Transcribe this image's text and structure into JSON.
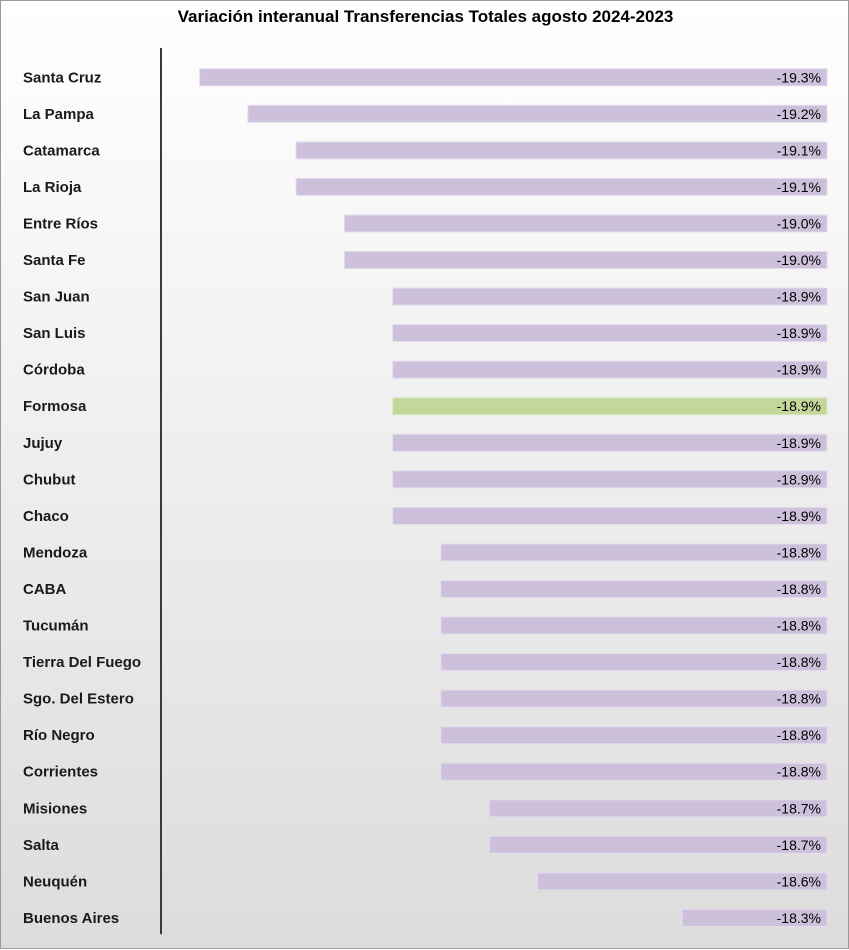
{
  "chart_data": {
    "type": "bar",
    "orientation": "horizontal",
    "title": "Variación interanual Transferencias Totales agosto 2024-2023",
    "xlabel": "",
    "ylabel": "",
    "grid": false,
    "legend": "none",
    "xlim": [
      -19.38,
      -18.0
    ],
    "categories": [
      "Santa Cruz",
      "La Pampa",
      "Catamarca",
      "La Rioja",
      "Entre Ríos",
      "Santa Fe",
      "San Juan",
      "San Luis",
      "Córdoba",
      "Formosa",
      "Jujuy",
      "Chubut",
      "Chaco",
      "Mendoza",
      "CABA",
      "Tucumán",
      "Tierra Del Fuego",
      "Sgo. Del Estero",
      "Río Negro",
      "Corrientes",
      "Misiones",
      "Salta",
      "Neuquén",
      "Buenos Aires"
    ],
    "values": [
      -19.3,
      -19.2,
      -19.1,
      -19.1,
      -19.0,
      -19.0,
      -18.9,
      -18.9,
      -18.9,
      -18.9,
      -18.9,
      -18.9,
      -18.9,
      -18.8,
      -18.8,
      -18.8,
      -18.8,
      -18.8,
      -18.8,
      -18.8,
      -18.7,
      -18.7,
      -18.6,
      -18.3
    ],
    "data_labels": [
      "-19.3%",
      "-19.2%",
      "-19.1%",
      "-19.1%",
      "-19.0%",
      "-19.0%",
      "-18.9%",
      "-18.9%",
      "-18.9%",
      "-18.9%",
      "-18.9%",
      "-18.9%",
      "-18.9%",
      "-18.8%",
      "-18.8%",
      "-18.8%",
      "-18.8%",
      "-18.8%",
      "-18.8%",
      "-18.8%",
      "-18.7%",
      "-18.7%",
      "-18.6%",
      "-18.3%"
    ],
    "highlight_index": 9,
    "colors": {
      "bar": "#ccc0da",
      "bar_border": "#e4dcee",
      "highlight": "#c4d79b",
      "highlight_border": "#dde8c4",
      "axis": "#3a3a3a"
    }
  }
}
